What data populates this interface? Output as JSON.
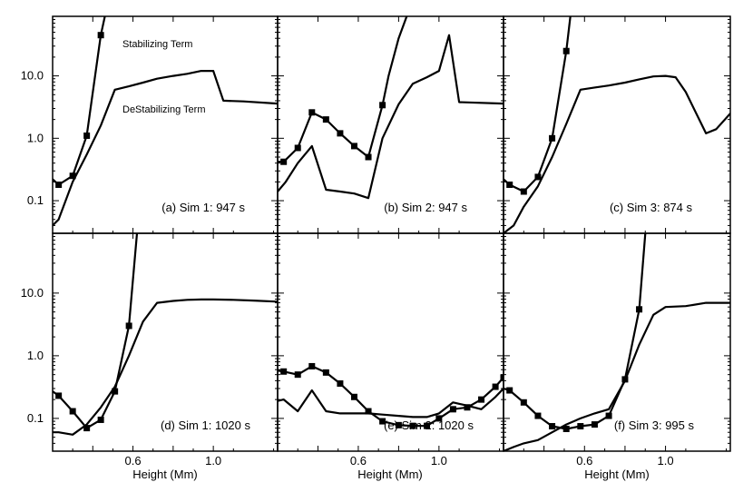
{
  "chart_data": {
    "type": "line",
    "layout": "2x3 grid of panels sharing axes",
    "xlabel": "Height (Mm)",
    "xlim": [
      0.2,
      1.32
    ],
    "xticks": [
      0.4,
      0.6,
      0.8,
      1.0
    ],
    "xtick_labels": [
      "0.4",
      "0.6",
      "0.8",
      "1.0"
    ],
    "xtick_labels_shown": [
      false,
      true,
      false,
      true
    ],
    "yscale": "log",
    "ylim": [
      0.03,
      90
    ],
    "yticks": [
      0.1,
      1.0,
      10.0
    ],
    "ytick_labels": [
      "0.1",
      "1.0",
      "10.0"
    ],
    "series_names": [
      "Stabilizing Term",
      "DeStabilizing Term"
    ],
    "annotations": [
      "Stabilizing Term",
      "DeStabilizing Term"
    ],
    "panels": [
      {
        "label": "(a) Sim 1: 947 s",
        "stabilizing": {
          "x": [
            0.2,
            0.23,
            0.3,
            0.37,
            0.44,
            0.46
          ],
          "y": [
            0.22,
            0.18,
            0.25,
            1.1,
            45,
            90
          ],
          "markers": [
            false,
            true,
            true,
            true,
            true,
            false
          ]
        },
        "destabilizing": {
          "x": [
            0.2,
            0.23,
            0.3,
            0.37,
            0.44,
            0.51,
            0.58,
            0.65,
            0.72,
            0.8,
            0.87,
            0.94,
            1.0,
            1.05,
            1.15,
            1.32
          ],
          "y": [
            0.04,
            0.05,
            0.2,
            0.55,
            1.6,
            6.0,
            6.8,
            7.8,
            9.0,
            10.0,
            10.8,
            12.0,
            12.0,
            4.0,
            3.9,
            3.6
          ]
        }
      },
      {
        "label": "(b) Sim 2: 947 s",
        "stabilizing": {
          "x": [
            0.2,
            0.23,
            0.3,
            0.37,
            0.44,
            0.51,
            0.58,
            0.65,
            0.72,
            0.75,
            0.8,
            0.84
          ],
          "y": [
            0.42,
            0.42,
            0.7,
            2.6,
            2.0,
            1.2,
            0.75,
            0.5,
            3.4,
            10,
            40,
            90
          ],
          "markers": [
            false,
            true,
            true,
            true,
            true,
            true,
            true,
            true,
            true,
            false,
            false,
            false
          ]
        },
        "destabilizing": {
          "x": [
            0.2,
            0.24,
            0.3,
            0.37,
            0.44,
            0.51,
            0.58,
            0.65,
            0.72,
            0.8,
            0.87,
            0.94,
            1.0,
            1.05,
            1.1,
            1.32
          ],
          "y": [
            0.14,
            0.2,
            0.4,
            0.75,
            0.15,
            0.14,
            0.13,
            0.11,
            1.0,
            3.5,
            7.5,
            9.5,
            12.0,
            45.0,
            3.8,
            3.6
          ]
        }
      },
      {
        "label": "(c) Sim 3: 874 s",
        "stabilizing": {
          "x": [
            0.2,
            0.23,
            0.3,
            0.37,
            0.44,
            0.51,
            0.53
          ],
          "y": [
            0.22,
            0.18,
            0.14,
            0.24,
            1.0,
            25,
            90
          ],
          "markers": [
            false,
            true,
            true,
            true,
            true,
            true,
            false
          ]
        },
        "destabilizing": {
          "x": [
            0.2,
            0.25,
            0.3,
            0.37,
            0.44,
            0.51,
            0.58,
            0.65,
            0.72,
            0.8,
            0.87,
            0.94,
            1.0,
            1.05,
            1.1,
            1.2,
            1.25,
            1.32
          ],
          "y": [
            0.03,
            0.04,
            0.08,
            0.17,
            0.5,
            1.7,
            6.0,
            6.5,
            7.0,
            7.8,
            8.8,
            9.8,
            10.0,
            9.5,
            5.5,
            1.2,
            1.4,
            2.5
          ]
        }
      },
      {
        "label": "(d) Sim 1: 1020 s",
        "stabilizing": {
          "x": [
            0.2,
            0.23,
            0.3,
            0.37,
            0.44,
            0.51,
            0.58,
            0.62
          ],
          "y": [
            0.27,
            0.23,
            0.13,
            0.07,
            0.095,
            0.27,
            3.0,
            90
          ],
          "markers": [
            false,
            true,
            true,
            true,
            true,
            true,
            true,
            false
          ]
        },
        "destabilizing": {
          "x": [
            0.2,
            0.23,
            0.3,
            0.37,
            0.44,
            0.51,
            0.58,
            0.65,
            0.72,
            0.8,
            0.87,
            0.94,
            1.0,
            1.1,
            1.2,
            1.32
          ],
          "y": [
            0.06,
            0.06,
            0.055,
            0.08,
            0.15,
            0.32,
            1.0,
            3.5,
            7.0,
            7.5,
            7.8,
            7.9,
            7.9,
            7.8,
            7.6,
            7.3
          ]
        }
      },
      {
        "label": "(e) Sim 2: 1020 s",
        "stabilizing": {
          "x": [
            0.2,
            0.23,
            0.3,
            0.37,
            0.44,
            0.51,
            0.58,
            0.65,
            0.72,
            0.8,
            0.87,
            0.94,
            1.0,
            1.07,
            1.14,
            1.21,
            1.28,
            1.32
          ],
          "y": [
            0.58,
            0.56,
            0.5,
            0.68,
            0.54,
            0.36,
            0.22,
            0.13,
            0.09,
            0.078,
            0.076,
            0.076,
            0.1,
            0.14,
            0.15,
            0.2,
            0.32,
            0.45
          ],
          "markers": [
            false,
            true,
            true,
            true,
            true,
            true,
            true,
            true,
            true,
            true,
            true,
            true,
            true,
            true,
            true,
            true,
            true,
            true
          ]
        },
        "destabilizing": {
          "x": [
            0.2,
            0.23,
            0.3,
            0.37,
            0.44,
            0.51,
            0.58,
            0.65,
            0.72,
            0.8,
            0.87,
            0.94,
            1.0,
            1.07,
            1.14,
            1.21,
            1.28,
            1.32
          ],
          "y": [
            0.19,
            0.2,
            0.13,
            0.28,
            0.13,
            0.12,
            0.12,
            0.12,
            0.115,
            0.11,
            0.105,
            0.105,
            0.12,
            0.18,
            0.16,
            0.14,
            0.22,
            0.3
          ]
        }
      },
      {
        "label": "(f) Sim 3: 995 s",
        "stabilizing": {
          "x": [
            0.2,
            0.23,
            0.3,
            0.37,
            0.44,
            0.51,
            0.58,
            0.65,
            0.72,
            0.8,
            0.87,
            0.9
          ],
          "y": [
            0.3,
            0.28,
            0.18,
            0.11,
            0.075,
            0.068,
            0.075,
            0.08,
            0.11,
            0.42,
            5.5,
            90
          ],
          "markers": [
            false,
            true,
            true,
            true,
            true,
            true,
            true,
            true,
            true,
            true,
            true,
            false
          ]
        },
        "destabilizing": {
          "x": [
            0.2,
            0.25,
            0.3,
            0.37,
            0.44,
            0.51,
            0.58,
            0.65,
            0.72,
            0.8,
            0.87,
            0.94,
            1.0,
            1.1,
            1.2,
            1.32
          ],
          "y": [
            0.03,
            0.035,
            0.04,
            0.045,
            0.06,
            0.08,
            0.1,
            0.12,
            0.14,
            0.4,
            1.5,
            4.5,
            6.0,
            6.2,
            7.0,
            7.0
          ]
        }
      }
    ]
  }
}
